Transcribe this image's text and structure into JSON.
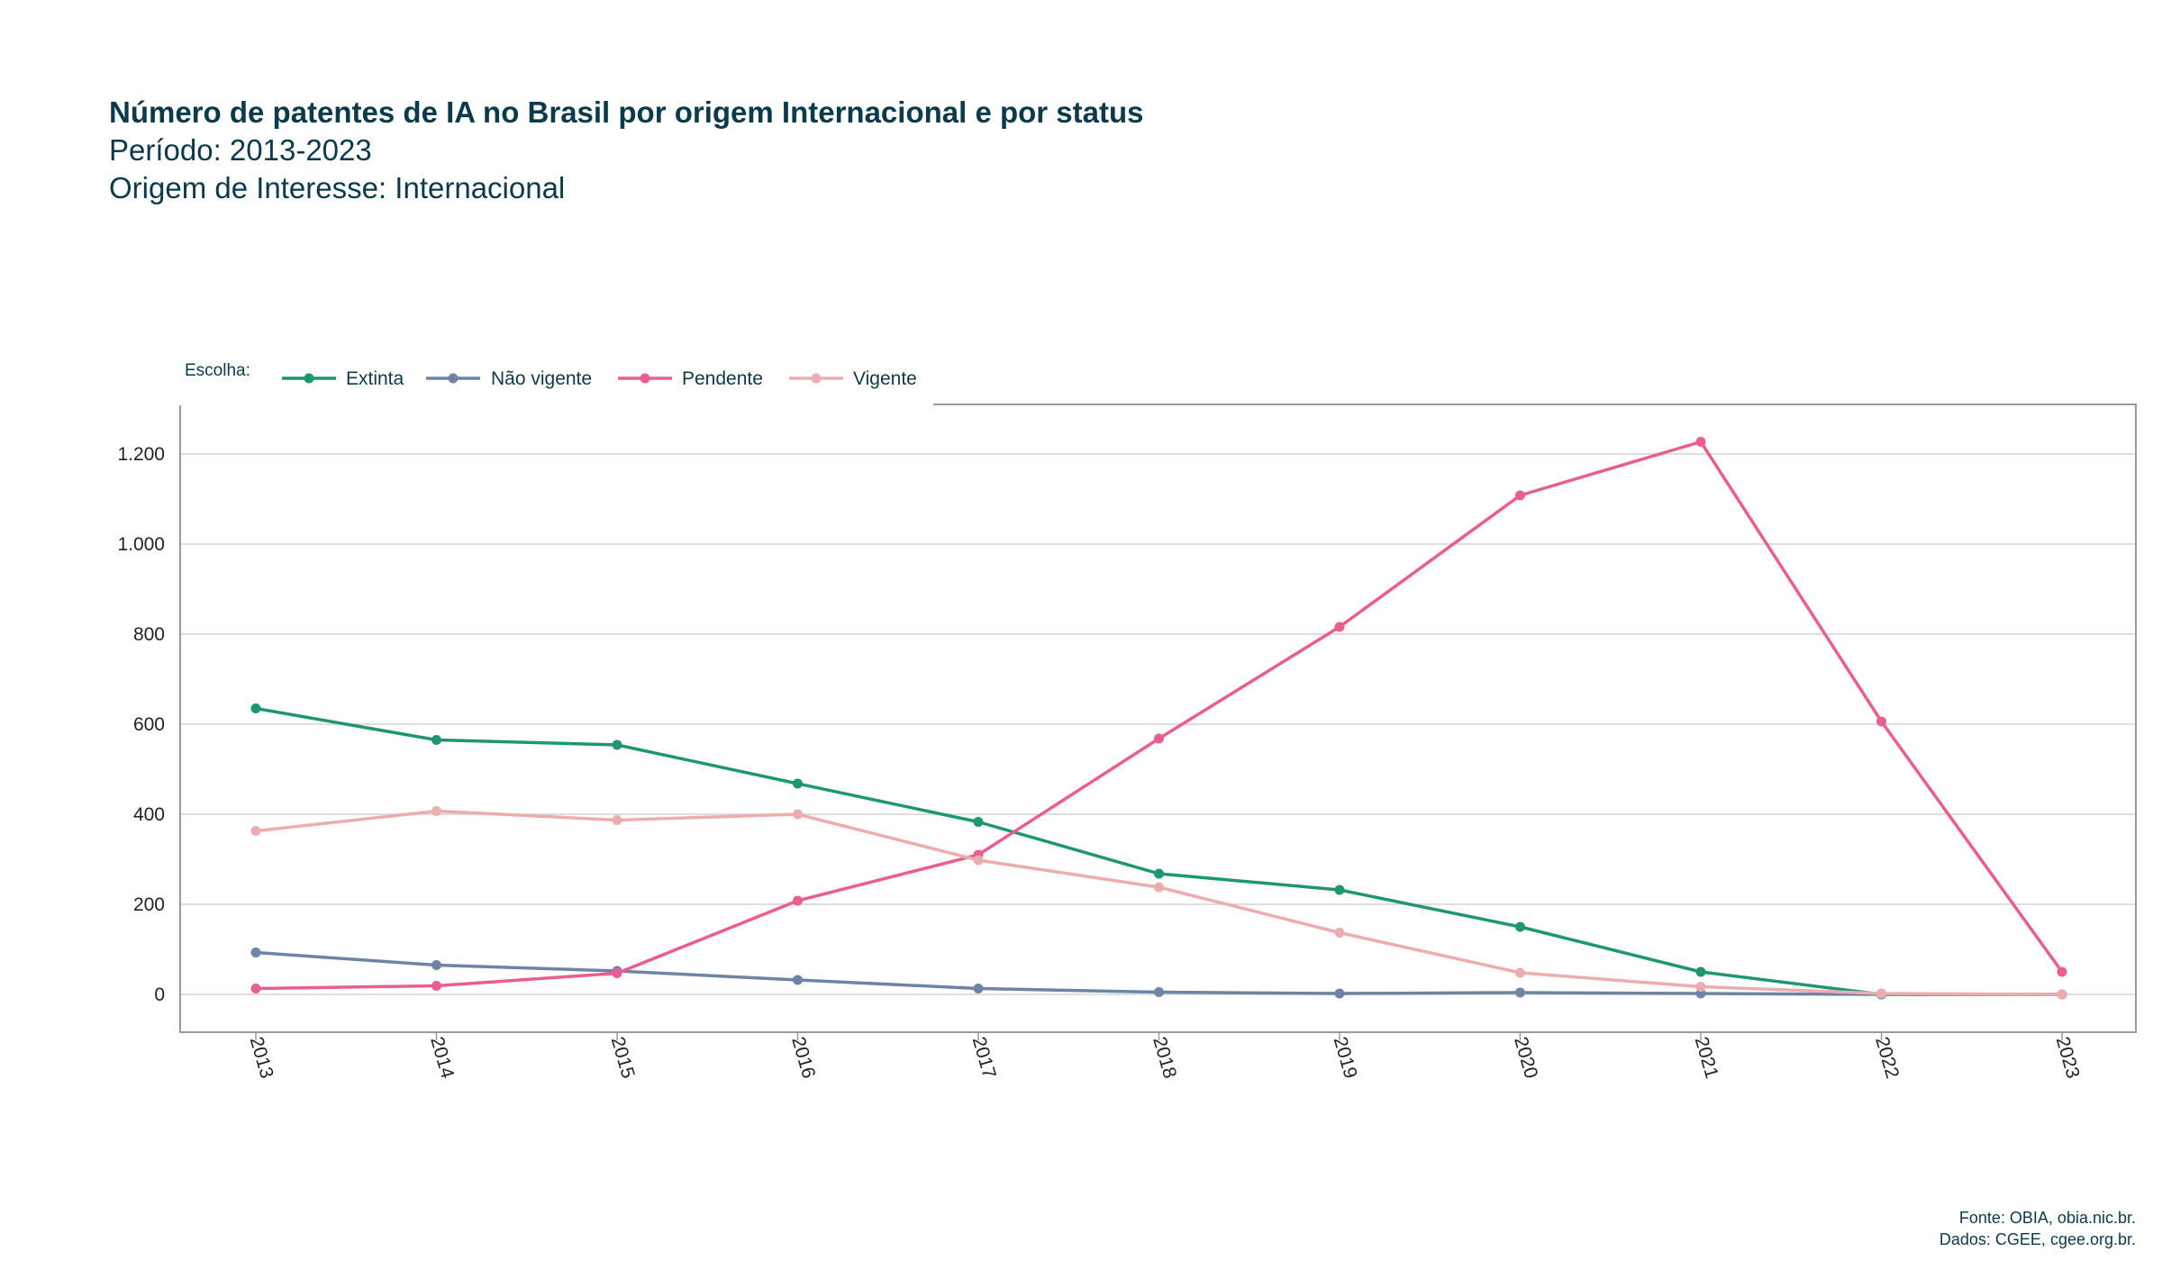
{
  "header": {
    "title": "Número de patentes de IA no Brasil por origem Internacional e por status",
    "period": "Período: 2013-2023",
    "origin": "Origem de Interesse: Internacional"
  },
  "legend": {
    "title": "Escolha:"
  },
  "footer": {
    "source": "Fonte: OBIA, obia.nic.br.",
    "data": "Dados: CGEE, cgee.org.br."
  },
  "chart_data": {
    "type": "line",
    "categories": [
      "2013",
      "2014",
      "2015",
      "2016",
      "2017",
      "2018",
      "2019",
      "2020",
      "2021",
      "2022",
      "2023"
    ],
    "y_ticks": [
      0,
      200,
      400,
      600,
      800,
      1000,
      1200
    ],
    "y_tick_labels": [
      "0",
      "200",
      "400",
      "600",
      "800",
      "1.000",
      "1.200"
    ],
    "ylim": [
      -80,
      1310
    ],
    "grid": true,
    "legend_position": "top-left",
    "series": [
      {
        "name": "Extinta",
        "color": "#1f9672",
        "values": [
          635,
          565,
          554,
          468,
          383,
          268,
          232,
          150,
          50,
          0,
          0
        ]
      },
      {
        "name": "Não vigente",
        "color": "#6d84a6",
        "values": [
          93,
          65,
          52,
          32,
          13,
          5,
          2,
          4,
          2,
          0,
          0
        ]
      },
      {
        "name": "Pendente",
        "color": "#ea5d90",
        "values": [
          13,
          19,
          47,
          208,
          310,
          568,
          816,
          1108,
          1227,
          606,
          50
        ]
      },
      {
        "name": "Vigente",
        "color": "#ecadaf",
        "values": [
          363,
          407,
          387,
          400,
          298,
          238,
          137,
          48,
          17,
          2,
          0
        ]
      }
    ]
  }
}
